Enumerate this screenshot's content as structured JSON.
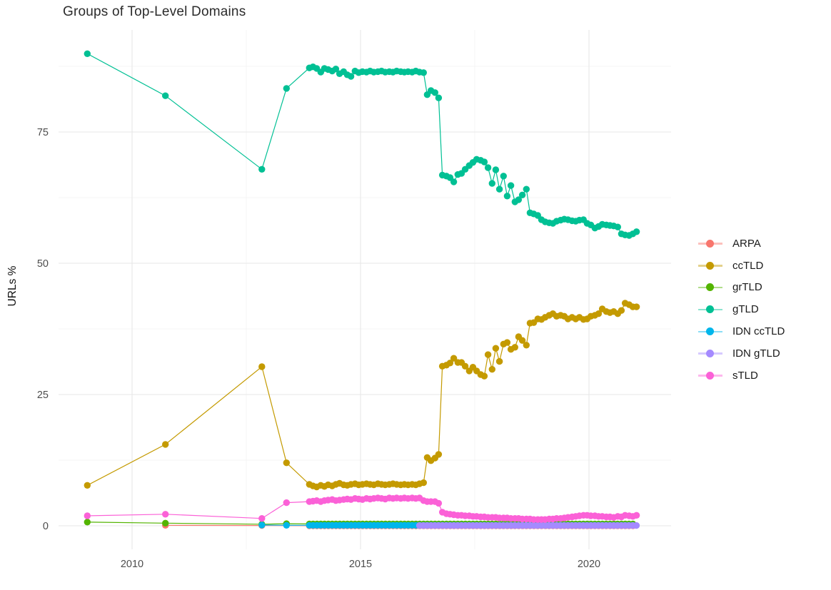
{
  "chart_data": {
    "type": "scatter-line",
    "title": "Groups of Top-Level Domains",
    "xlabel": "",
    "ylabel": "URLs %",
    "legend_position": "right",
    "grid": {
      "major_color": "#e7e7e7",
      "minor_color": "#f2f2f2",
      "y_major": [
        0,
        25,
        50,
        75
      ],
      "y_minor": [
        12.5,
        37.5,
        62.5,
        87.5
      ],
      "x_major": [
        2010,
        2015,
        2020
      ],
      "x_minor": [
        2012.5,
        2017.5
      ]
    },
    "x_ticks": [
      {
        "label": "2010",
        "year": 2010
      },
      {
        "label": "2015",
        "year": 2015
      },
      {
        "label": "2020",
        "year": 2020
      }
    ],
    "y_ticks": [
      {
        "label": "0",
        "value": 0
      },
      {
        "label": "25",
        "value": 25
      },
      {
        "label": "50",
        "value": 50
      },
      {
        "label": "75",
        "value": 75
      }
    ],
    "x_range": [
      2008.4,
      2021.65
    ],
    "y_range": [
      -4.5,
      94.5
    ],
    "series": [
      {
        "name": "ARPA",
        "color": "#F8766D",
        "points": [
          [
            2010.73,
            0.1
          ],
          [
            2012.84,
            0.05
          ]
        ],
        "flat": {
          "from": 2013.88,
          "to": 2021.04,
          "step": 0.0833,
          "value": 0.02
        }
      },
      {
        "name": "ccTLD",
        "color": "#C49A00",
        "points": [
          [
            2009.02,
            7.7
          ],
          [
            2010.73,
            15.5
          ],
          [
            2012.84,
            30.3
          ],
          [
            2013.38,
            12.0
          ],
          [
            2013.88,
            7.9
          ],
          [
            2013.96,
            7.6
          ],
          [
            2014.04,
            7.4
          ],
          [
            2014.13,
            7.7
          ],
          [
            2014.21,
            7.5
          ],
          [
            2014.29,
            7.8
          ],
          [
            2014.38,
            7.6
          ],
          [
            2014.46,
            7.9
          ],
          [
            2014.54,
            8.1
          ],
          [
            2014.63,
            7.8
          ],
          [
            2014.71,
            7.7
          ],
          [
            2014.79,
            7.9
          ],
          [
            2014.88,
            8.0
          ],
          [
            2014.96,
            7.8
          ],
          [
            2015.04,
            7.9
          ],
          [
            2015.13,
            8.0
          ],
          [
            2015.21,
            7.9
          ],
          [
            2015.29,
            7.8
          ],
          [
            2015.38,
            8.0
          ],
          [
            2015.46,
            7.9
          ],
          [
            2015.54,
            7.8
          ],
          [
            2015.63,
            7.9
          ],
          [
            2015.71,
            8.0
          ],
          [
            2015.79,
            7.9
          ],
          [
            2015.88,
            7.8
          ],
          [
            2015.96,
            7.9
          ],
          [
            2016.04,
            7.8
          ],
          [
            2016.13,
            7.9
          ],
          [
            2016.21,
            7.8
          ],
          [
            2016.29,
            8.0
          ],
          [
            2016.38,
            8.2
          ],
          [
            2016.46,
            13.0
          ],
          [
            2016.54,
            12.4
          ],
          [
            2016.63,
            12.9
          ],
          [
            2016.71,
            13.6
          ],
          [
            2016.79,
            30.4
          ],
          [
            2016.88,
            30.6
          ],
          [
            2016.96,
            31.0
          ],
          [
            2017.04,
            31.9
          ],
          [
            2017.13,
            31.1
          ],
          [
            2017.21,
            31.1
          ],
          [
            2017.29,
            30.4
          ],
          [
            2017.38,
            29.5
          ],
          [
            2017.46,
            30.2
          ],
          [
            2017.54,
            29.5
          ],
          [
            2017.63,
            28.8
          ],
          [
            2017.71,
            28.5
          ],
          [
            2017.79,
            32.6
          ],
          [
            2017.88,
            29.8
          ],
          [
            2017.96,
            33.8
          ],
          [
            2018.04,
            31.3
          ],
          [
            2018.13,
            34.6
          ],
          [
            2018.21,
            34.9
          ],
          [
            2018.29,
            33.6
          ],
          [
            2018.38,
            34.0
          ],
          [
            2018.46,
            36.0
          ],
          [
            2018.54,
            35.3
          ],
          [
            2018.63,
            34.4
          ],
          [
            2018.71,
            38.6
          ],
          [
            2018.79,
            38.7
          ],
          [
            2018.88,
            39.4
          ],
          [
            2018.96,
            39.3
          ],
          [
            2019.04,
            39.7
          ],
          [
            2019.13,
            40.1
          ],
          [
            2019.21,
            40.4
          ],
          [
            2019.29,
            39.9
          ],
          [
            2019.38,
            40.1
          ],
          [
            2019.46,
            39.9
          ],
          [
            2019.54,
            39.4
          ],
          [
            2019.63,
            39.7
          ],
          [
            2019.71,
            39.4
          ],
          [
            2019.79,
            39.7
          ],
          [
            2019.88,
            39.3
          ],
          [
            2019.96,
            39.4
          ],
          [
            2020.04,
            39.9
          ],
          [
            2020.13,
            40.1
          ],
          [
            2020.21,
            40.4
          ],
          [
            2020.29,
            41.3
          ],
          [
            2020.38,
            40.8
          ],
          [
            2020.46,
            40.6
          ],
          [
            2020.54,
            40.8
          ],
          [
            2020.63,
            40.4
          ],
          [
            2020.71,
            41.0
          ],
          [
            2020.79,
            42.4
          ],
          [
            2020.88,
            42.1
          ],
          [
            2020.96,
            41.7
          ],
          [
            2021.04,
            41.7
          ]
        ]
      },
      {
        "name": "grTLD",
        "color": "#53B400",
        "points": [
          [
            2009.02,
            0.7
          ],
          [
            2010.73,
            0.5
          ],
          [
            2012.84,
            0.3
          ],
          [
            2013.38,
            0.4
          ]
        ],
        "flat": {
          "from": 2013.88,
          "to": 2021.04,
          "step": 0.0833,
          "value": 0.35
        }
      },
      {
        "name": "gTLD",
        "color": "#00C094",
        "points": [
          [
            2009.02,
            89.9
          ],
          [
            2010.73,
            81.9
          ],
          [
            2012.84,
            67.9
          ],
          [
            2013.38,
            83.3
          ],
          [
            2013.88,
            87.2
          ],
          [
            2013.96,
            87.4
          ],
          [
            2014.04,
            87.1
          ],
          [
            2014.13,
            86.4
          ],
          [
            2014.21,
            87.1
          ],
          [
            2014.29,
            86.9
          ],
          [
            2014.38,
            86.6
          ],
          [
            2014.46,
            87.0
          ],
          [
            2014.54,
            86.1
          ],
          [
            2014.63,
            86.5
          ],
          [
            2014.71,
            85.9
          ],
          [
            2014.79,
            85.6
          ],
          [
            2014.88,
            86.6
          ],
          [
            2014.96,
            86.3
          ],
          [
            2015.04,
            86.5
          ],
          [
            2015.13,
            86.4
          ],
          [
            2015.21,
            86.6
          ],
          [
            2015.29,
            86.4
          ],
          [
            2015.38,
            86.5
          ],
          [
            2015.46,
            86.6
          ],
          [
            2015.54,
            86.4
          ],
          [
            2015.63,
            86.5
          ],
          [
            2015.71,
            86.4
          ],
          [
            2015.79,
            86.6
          ],
          [
            2015.88,
            86.5
          ],
          [
            2015.96,
            86.4
          ],
          [
            2016.04,
            86.5
          ],
          [
            2016.13,
            86.4
          ],
          [
            2016.21,
            86.6
          ],
          [
            2016.29,
            86.4
          ],
          [
            2016.38,
            86.3
          ],
          [
            2016.46,
            82.1
          ],
          [
            2016.54,
            82.9
          ],
          [
            2016.63,
            82.5
          ],
          [
            2016.71,
            81.5
          ],
          [
            2016.79,
            66.8
          ],
          [
            2016.88,
            66.6
          ],
          [
            2016.96,
            66.3
          ],
          [
            2017.04,
            65.5
          ],
          [
            2017.13,
            66.9
          ],
          [
            2017.21,
            67.1
          ],
          [
            2017.29,
            67.9
          ],
          [
            2017.38,
            68.6
          ],
          [
            2017.46,
            69.2
          ],
          [
            2017.54,
            69.8
          ],
          [
            2017.63,
            69.6
          ],
          [
            2017.71,
            69.3
          ],
          [
            2017.79,
            68.2
          ],
          [
            2017.88,
            65.2
          ],
          [
            2017.96,
            67.8
          ],
          [
            2018.04,
            64.1
          ],
          [
            2018.13,
            66.6
          ],
          [
            2018.21,
            62.8
          ],
          [
            2018.29,
            64.8
          ],
          [
            2018.38,
            61.7
          ],
          [
            2018.46,
            62.1
          ],
          [
            2018.54,
            63.0
          ],
          [
            2018.63,
            64.1
          ],
          [
            2018.71,
            59.6
          ],
          [
            2018.79,
            59.4
          ],
          [
            2018.88,
            59.1
          ],
          [
            2018.96,
            58.3
          ],
          [
            2019.04,
            57.9
          ],
          [
            2019.13,
            57.7
          ],
          [
            2019.21,
            57.6
          ],
          [
            2019.29,
            58.0
          ],
          [
            2019.38,
            58.2
          ],
          [
            2019.46,
            58.4
          ],
          [
            2019.54,
            58.3
          ],
          [
            2019.63,
            58.1
          ],
          [
            2019.71,
            58.0
          ],
          [
            2019.79,
            58.2
          ],
          [
            2019.88,
            58.3
          ],
          [
            2019.96,
            57.6
          ],
          [
            2020.04,
            57.3
          ],
          [
            2020.13,
            56.7
          ],
          [
            2020.21,
            57.0
          ],
          [
            2020.29,
            57.4
          ],
          [
            2020.38,
            57.3
          ],
          [
            2020.46,
            57.2
          ],
          [
            2020.54,
            57.1
          ],
          [
            2020.63,
            56.9
          ],
          [
            2020.71,
            55.6
          ],
          [
            2020.79,
            55.4
          ],
          [
            2020.88,
            55.3
          ],
          [
            2020.96,
            55.6
          ],
          [
            2021.04,
            56.0
          ]
        ]
      },
      {
        "name": "IDN ccTLD",
        "color": "#00B6EB",
        "points": [
          [
            2012.84,
            0.15
          ],
          [
            2013.38,
            0.1
          ]
        ],
        "flat": {
          "from": 2013.88,
          "to": 2021.04,
          "step": 0.0833,
          "value": 0.1
        }
      },
      {
        "name": "IDN gTLD",
        "color": "#A58AFF",
        "points": [],
        "flat": {
          "from": 2016.29,
          "to": 2021.04,
          "step": 0.0833,
          "value": 0.05
        }
      },
      {
        "name": "sTLD",
        "color": "#FB61D7",
        "points": [
          [
            2009.02,
            1.9
          ],
          [
            2010.73,
            2.2
          ],
          [
            2012.84,
            1.4
          ],
          [
            2013.38,
            4.4
          ],
          [
            2013.88,
            4.6
          ],
          [
            2013.96,
            4.7
          ],
          [
            2014.04,
            4.8
          ],
          [
            2014.13,
            4.6
          ],
          [
            2014.21,
            4.8
          ],
          [
            2014.29,
            4.9
          ],
          [
            2014.38,
            5.0
          ],
          [
            2014.46,
            4.8
          ],
          [
            2014.54,
            4.9
          ],
          [
            2014.63,
            5.0
          ],
          [
            2014.71,
            5.1
          ],
          [
            2014.79,
            5.0
          ],
          [
            2014.88,
            5.2
          ],
          [
            2014.96,
            5.1
          ],
          [
            2015.04,
            5.0
          ],
          [
            2015.13,
            5.2
          ],
          [
            2015.21,
            5.1
          ],
          [
            2015.29,
            5.2
          ],
          [
            2015.38,
            5.3
          ],
          [
            2015.46,
            5.2
          ],
          [
            2015.54,
            5.1
          ],
          [
            2015.63,
            5.3
          ],
          [
            2015.71,
            5.2
          ],
          [
            2015.79,
            5.3
          ],
          [
            2015.88,
            5.2
          ],
          [
            2015.96,
            5.3
          ],
          [
            2016.04,
            5.2
          ],
          [
            2016.13,
            5.3
          ],
          [
            2016.21,
            5.2
          ],
          [
            2016.29,
            5.3
          ],
          [
            2016.38,
            4.8
          ],
          [
            2016.46,
            4.6
          ],
          [
            2016.54,
            4.6
          ],
          [
            2016.63,
            4.6
          ],
          [
            2016.71,
            4.3
          ],
          [
            2016.79,
            2.6
          ],
          [
            2016.88,
            2.3
          ],
          [
            2016.96,
            2.2
          ],
          [
            2017.04,
            2.1
          ],
          [
            2017.13,
            2.0
          ],
          [
            2017.21,
            2.0
          ],
          [
            2017.29,
            1.9
          ],
          [
            2017.38,
            1.9
          ],
          [
            2017.46,
            1.8
          ],
          [
            2017.54,
            1.8
          ],
          [
            2017.63,
            1.7
          ],
          [
            2017.71,
            1.7
          ],
          [
            2017.79,
            1.6
          ],
          [
            2017.88,
            1.6
          ],
          [
            2017.96,
            1.6
          ],
          [
            2018.04,
            1.5
          ],
          [
            2018.13,
            1.5
          ],
          [
            2018.21,
            1.5
          ],
          [
            2018.29,
            1.4
          ],
          [
            2018.38,
            1.4
          ],
          [
            2018.46,
            1.4
          ],
          [
            2018.54,
            1.3
          ],
          [
            2018.63,
            1.3
          ],
          [
            2018.71,
            1.3
          ],
          [
            2018.79,
            1.2
          ],
          [
            2018.88,
            1.2
          ],
          [
            2018.96,
            1.2
          ],
          [
            2019.04,
            1.2
          ],
          [
            2019.13,
            1.3
          ],
          [
            2019.21,
            1.3
          ],
          [
            2019.29,
            1.4
          ],
          [
            2019.38,
            1.4
          ],
          [
            2019.46,
            1.5
          ],
          [
            2019.54,
            1.6
          ],
          [
            2019.63,
            1.7
          ],
          [
            2019.71,
            1.8
          ],
          [
            2019.79,
            1.9
          ],
          [
            2019.88,
            2.0
          ],
          [
            2019.96,
            2.0
          ],
          [
            2020.04,
            1.9
          ],
          [
            2020.13,
            1.9
          ],
          [
            2020.21,
            1.8
          ],
          [
            2020.29,
            1.8
          ],
          [
            2020.38,
            1.7
          ],
          [
            2020.46,
            1.7
          ],
          [
            2020.54,
            1.6
          ],
          [
            2020.63,
            1.8
          ],
          [
            2020.71,
            1.7
          ],
          [
            2020.79,
            2.0
          ],
          [
            2020.88,
            1.9
          ],
          [
            2020.96,
            1.8
          ],
          [
            2021.04,
            2.0
          ]
        ]
      }
    ]
  }
}
